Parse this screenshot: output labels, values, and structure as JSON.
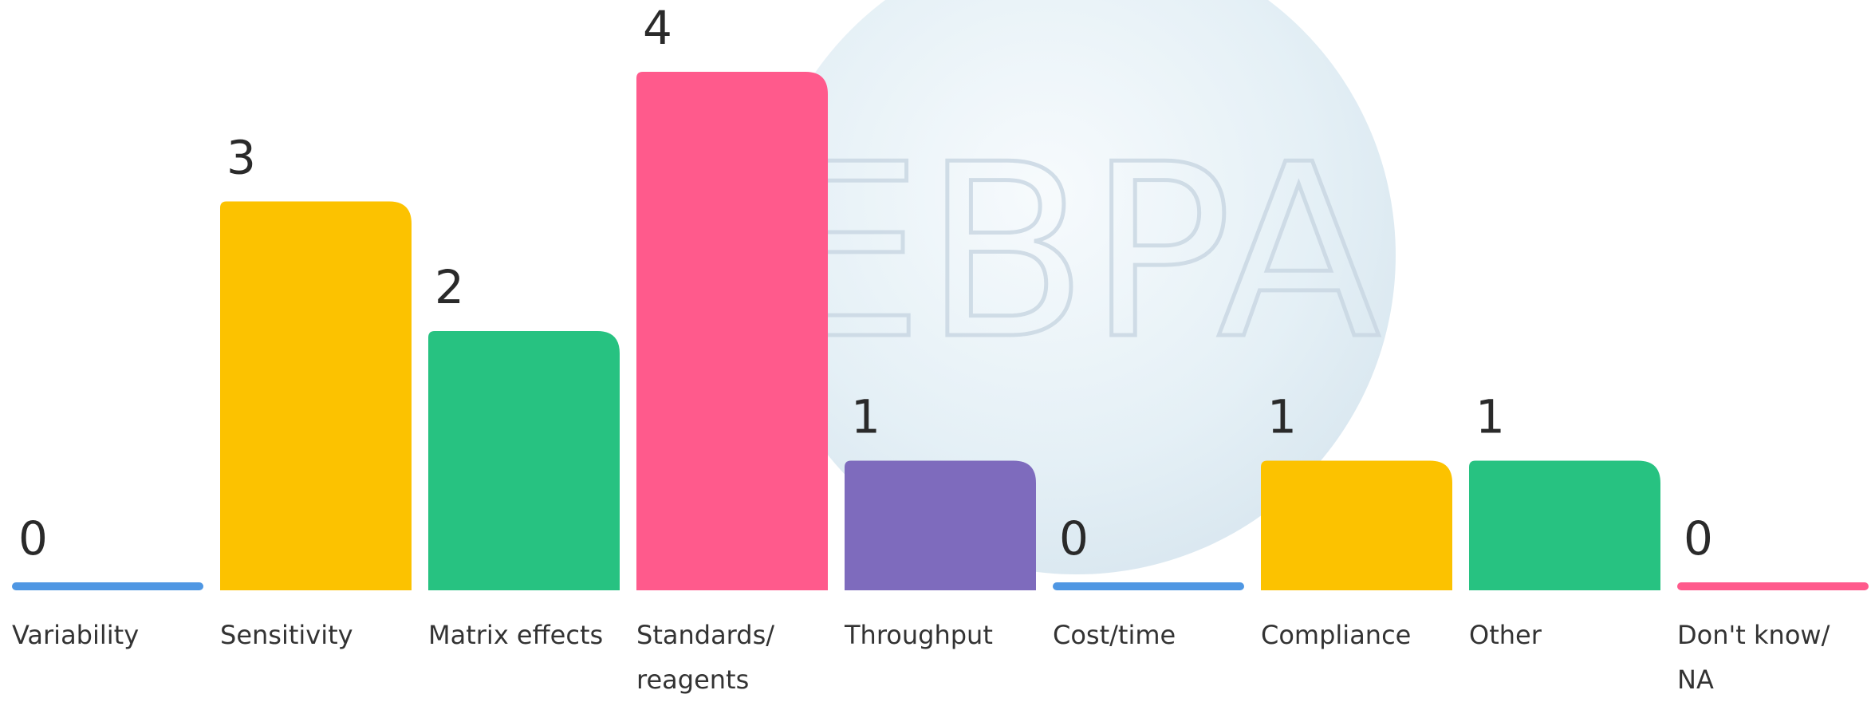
{
  "chart_data": {
    "type": "bar",
    "watermark": "EBPA",
    "categories": [
      "Variability",
      "Sensitivity",
      "Matrix effects",
      "Standards/\nreagents",
      "Throughput",
      "Cost/time",
      "Compliance",
      "Other",
      "Don't know/\nNA"
    ],
    "values": [
      0,
      3,
      2,
      4,
      1,
      0,
      1,
      1,
      0
    ],
    "colors": [
      "#4f97e3",
      "#fcc200",
      "#27c281",
      "#ff5a8c",
      "#7e6bbd",
      "#4f97e3",
      "#fcc200",
      "#27c281",
      "#ff5a8c"
    ],
    "ylim": [
      0,
      4
    ]
  }
}
